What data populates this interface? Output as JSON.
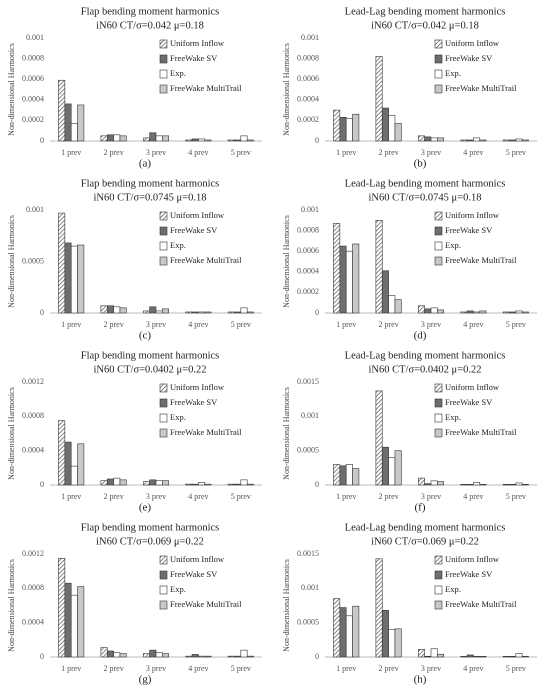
{
  "chart_data": [
    {
      "type": "bar",
      "title": "Flap bending moment harmonics",
      "subtitle": "iN60 CT/σ=0.042 μ=0.18",
      "label": "(a)",
      "y_label": "Non-dimensional Harmonics",
      "categories": [
        "1 prev",
        "2 prev",
        "3 prev",
        "4 prev",
        "5 prev"
      ],
      "series": [
        {
          "name": "Uniform Inflow",
          "color": "#d9d9d9",
          "pattern": "hatch",
          "values": [
            0.00059,
            5e-05,
            3e-05,
            1e-05,
            1e-05
          ]
        },
        {
          "name": "FreeWake SV",
          "color": "#6e6e6e",
          "values": [
            0.00036,
            6e-05,
            8e-05,
            2e-05,
            1e-05
          ]
        },
        {
          "name": "Exp.",
          "color": "#ffffff",
          "values": [
            0.00017,
            6e-05,
            5e-05,
            2e-05,
            5e-05
          ]
        },
        {
          "name": "FreeWake MultiTrail",
          "color": "#c8c8c8",
          "values": [
            0.00035,
            5e-05,
            5e-05,
            1e-05,
            1e-05
          ]
        }
      ],
      "ylim": [
        0,
        0.001
      ],
      "yticks": [
        0,
        0.0002,
        0.0004,
        0.0006,
        0.0008,
        0.001
      ],
      "grid": false,
      "legend": "upper right"
    },
    {
      "type": "bar",
      "title": "Lead-Lag bending moment harmonics",
      "subtitle": "iN60 CT/σ=0.042 μ=0.18",
      "label": "(b)",
      "y_label": "Non-dimensional Harmonics",
      "categories": [
        "1 prev",
        "2 prev",
        "3 prev",
        "4 prev",
        "5 prev"
      ],
      "series": [
        {
          "name": "Uniform Inflow",
          "color": "#d9d9d9",
          "pattern": "hatch",
          "values": [
            0.0003,
            0.00082,
            5e-05,
            1e-05,
            1e-05
          ]
        },
        {
          "name": "FreeWake SV",
          "color": "#6e6e6e",
          "values": [
            0.00023,
            0.00032,
            4e-05,
            1e-05,
            1e-05
          ]
        },
        {
          "name": "Exp.",
          "color": "#ffffff",
          "values": [
            0.00022,
            0.00025,
            3e-05,
            3e-05,
            2e-05
          ]
        },
        {
          "name": "FreeWake MultiTrail",
          "color": "#c8c8c8",
          "values": [
            0.00026,
            0.00017,
            3e-05,
            1e-05,
            1e-05
          ]
        }
      ],
      "ylim": [
        0,
        0.001
      ],
      "yticks": [
        0,
        0.0002,
        0.0004,
        0.0006,
        0.0008,
        0.001
      ],
      "grid": false,
      "legend": "upper right"
    },
    {
      "type": "bar",
      "title": "Flap bending moment harmonics",
      "subtitle": "iN60 CT/σ=0.0745 μ=0.18",
      "label": "(c)",
      "y_label": "Non-dimensional Harmonics",
      "categories": [
        "1 prev",
        "2 prev",
        "3 prev",
        "4 prev",
        "5 prev"
      ],
      "series": [
        {
          "name": "Uniform Inflow",
          "color": "#d9d9d9",
          "pattern": "hatch",
          "values": [
            0.00097,
            7e-05,
            2e-05,
            1e-05,
            1e-05
          ]
        },
        {
          "name": "FreeWake SV",
          "color": "#6e6e6e",
          "values": [
            0.00068,
            7e-05,
            6e-05,
            1e-05,
            1e-05
          ]
        },
        {
          "name": "Exp.",
          "color": "#ffffff",
          "values": [
            0.00065,
            6e-05,
            2e-05,
            1e-05,
            5e-05
          ]
        },
        {
          "name": "FreeWake MultiTrail",
          "color": "#c8c8c8",
          "values": [
            0.00066,
            5e-05,
            4e-05,
            1e-05,
            1e-05
          ]
        }
      ],
      "ylim": [
        0,
        0.001
      ],
      "yticks": [
        0,
        0.0005,
        0.001
      ],
      "grid": false,
      "legend": "upper right"
    },
    {
      "type": "bar",
      "title": "Lead-Lag bending moment harmonics",
      "subtitle": "iN60 CT/σ=0.0745 μ=0.18",
      "label": "(d)",
      "y_label": "Non-dimensional Harmonics",
      "categories": [
        "1 prev",
        "2 prev",
        "3 prev",
        "4 prev",
        "5 prev"
      ],
      "series": [
        {
          "name": "Uniform Inflow",
          "color": "#d9d9d9",
          "pattern": "hatch",
          "values": [
            0.00087,
            0.0009,
            7e-05,
            1e-05,
            1e-05
          ]
        },
        {
          "name": "FreeWake SV",
          "color": "#6e6e6e",
          "values": [
            0.00065,
            0.00041,
            4e-05,
            2e-05,
            1e-05
          ]
        },
        {
          "name": "Exp.",
          "color": "#ffffff",
          "values": [
            0.0006,
            0.00017,
            5e-05,
            1e-05,
            2e-05
          ]
        },
        {
          "name": "FreeWake MultiTrail",
          "color": "#c8c8c8",
          "values": [
            0.00067,
            0.00013,
            3e-05,
            2e-05,
            1e-05
          ]
        }
      ],
      "ylim": [
        0,
        0.001
      ],
      "yticks": [
        0,
        0.0002,
        0.0004,
        0.0006,
        0.0008,
        0.001
      ],
      "grid": false,
      "legend": "upper right"
    },
    {
      "type": "bar",
      "title": "Flap bending moment harmonics",
      "subtitle": "iN60 CT/σ=0.0402 μ=0.22",
      "label": "(e)",
      "y_label": "Non-dimensional Harmonics",
      "categories": [
        "1 prev",
        "2 prev",
        "3 prev",
        "4 prev",
        "5 prev"
      ],
      "series": [
        {
          "name": "Uniform Inflow",
          "color": "#d9d9d9",
          "pattern": "hatch",
          "values": [
            0.00075,
            5e-05,
            4e-05,
            1e-05,
            1e-05
          ]
        },
        {
          "name": "FreeWake SV",
          "color": "#6e6e6e",
          "values": [
            0.0005,
            7e-05,
            6e-05,
            1e-05,
            1e-05
          ]
        },
        {
          "name": "Exp.",
          "color": "#ffffff",
          "values": [
            0.00022,
            8e-05,
            5e-05,
            3e-05,
            6e-05
          ]
        },
        {
          "name": "FreeWake MultiTrail",
          "color": "#c8c8c8",
          "values": [
            0.00048,
            6e-05,
            5e-05,
            1e-05,
            1e-05
          ]
        }
      ],
      "ylim": [
        0,
        0.0012
      ],
      "yticks": [
        0,
        0.0004,
        0.0008,
        0.0012
      ],
      "grid": false,
      "legend": "upper right"
    },
    {
      "type": "bar",
      "title": "Lead-Lag bending moment harmonics",
      "subtitle": "iN60 CT/σ=0.0402 μ=0.22",
      "label": "(f)",
      "y_label": "Non-dimensional Harmonics",
      "categories": [
        "1 prev",
        "2 prev",
        "3 prev",
        "4 prev",
        "5 prev"
      ],
      "series": [
        {
          "name": "Uniform Inflow",
          "color": "#d9d9d9",
          "pattern": "hatch",
          "values": [
            0.0003,
            0.00137,
            0.0001,
            1e-05,
            1e-05
          ]
        },
        {
          "name": "FreeWake SV",
          "color": "#6e6e6e",
          "values": [
            0.00028,
            0.00055,
            2e-05,
            1e-05,
            1e-05
          ]
        },
        {
          "name": "Exp.",
          "color": "#ffffff",
          "values": [
            0.0003,
            0.0004,
            6e-05,
            4e-05,
            3e-05
          ]
        },
        {
          "name": "FreeWake MultiTrail",
          "color": "#c8c8c8",
          "values": [
            0.00024,
            0.0005,
            5e-05,
            1e-05,
            1e-05
          ]
        }
      ],
      "ylim": [
        0,
        0.0015
      ],
      "yticks": [
        0,
        0.0005,
        0.001,
        0.0015
      ],
      "grid": false,
      "legend": "upper right"
    },
    {
      "type": "bar",
      "title": "Flap bending moment harmonics",
      "subtitle": "iN60 CT/σ=0.069 μ=0.22",
      "label": "(g)",
      "y_label": "Non-dimensional Harmonics",
      "categories": [
        "1 prev",
        "2 prev",
        "3 prev",
        "4 prev",
        "5 prev"
      ],
      "series": [
        {
          "name": "Uniform Inflow",
          "color": "#d9d9d9",
          "pattern": "hatch",
          "values": [
            0.00115,
            0.00011,
            4e-05,
            1e-05,
            1e-05
          ]
        },
        {
          "name": "FreeWake SV",
          "color": "#6e6e6e",
          "values": [
            0.00086,
            7e-05,
            8e-05,
            3e-05,
            1e-05
          ]
        },
        {
          "name": "Exp.",
          "color": "#ffffff",
          "values": [
            0.00072,
            5e-05,
            5e-05,
            1e-05,
            8e-05
          ]
        },
        {
          "name": "FreeWake MultiTrail",
          "color": "#c8c8c8",
          "values": [
            0.00082,
            4e-05,
            4e-05,
            1e-05,
            1e-05
          ]
        }
      ],
      "ylim": [
        0,
        0.0012
      ],
      "yticks": [
        0,
        0.0004,
        0.0008,
        0.0012
      ],
      "grid": false,
      "legend": "upper right"
    },
    {
      "type": "bar",
      "title": "Lead-Lag bending moment harmonics",
      "subtitle": "iN60 CT/σ=0.069 μ=0.22",
      "label": "(h)",
      "y_label": "Non-dimensional Harmonics",
      "categories": [
        "1 prev",
        "2 prev",
        "3 prev",
        "4 prev",
        "5 prev"
      ],
      "series": [
        {
          "name": "Uniform Inflow",
          "color": "#d9d9d9",
          "pattern": "hatch",
          "values": [
            0.00085,
            0.00143,
            0.00011,
            1e-05,
            1e-05
          ]
        },
        {
          "name": "FreeWake SV",
          "color": "#6e6e6e",
          "values": [
            0.00072,
            0.00068,
            1e-05,
            3e-05,
            1e-05
          ]
        },
        {
          "name": "Exp.",
          "color": "#ffffff",
          "values": [
            0.0006,
            0.0004,
            0.00012,
            1e-05,
            5e-05
          ]
        },
        {
          "name": "FreeWake MultiTrail",
          "color": "#c8c8c8",
          "values": [
            0.00074,
            0.00041,
            4e-05,
            1e-05,
            1e-05
          ]
        }
      ],
      "ylim": [
        0,
        0.0015
      ],
      "yticks": [
        0,
        0.0005,
        0.001,
        0.0015
      ],
      "grid": false,
      "legend": "upper right"
    }
  ]
}
